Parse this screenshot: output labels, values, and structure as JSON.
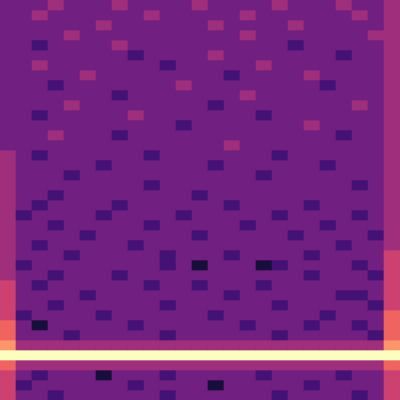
{
  "chart_data": {
    "type": "heatmap",
    "tick_labels": false,
    "grid": false,
    "zlim": [
      0,
      9
    ],
    "cells": [
      [
        3,
        3,
        3,
        4,
        3,
        3,
        3,
        4,
        3,
        3,
        3,
        3,
        4,
        3,
        3,
        3,
        3,
        4,
        3,
        3,
        3,
        4,
        3,
        3,
        4
      ],
      [
        3,
        3,
        4,
        3,
        3,
        3,
        3,
        3,
        3,
        4,
        3,
        3,
        3,
        3,
        3,
        4,
        3,
        3,
        3,
        3,
        3,
        3,
        4,
        3,
        4
      ],
      [
        3,
        3,
        3,
        3,
        3,
        3,
        4,
        3,
        3,
        3,
        3,
        3,
        3,
        4,
        3,
        3,
        3,
        3,
        4,
        3,
        3,
        3,
        3,
        3,
        4
      ],
      [
        3,
        3,
        3,
        3,
        4,
        3,
        3,
        3,
        3,
        3,
        3,
        3,
        3,
        3,
        3,
        4,
        3,
        3,
        3,
        3,
        3,
        3,
        3,
        4,
        4
      ],
      [
        3,
        3,
        2,
        3,
        3,
        3,
        3,
        4,
        3,
        3,
        3,
        3,
        3,
        3,
        3,
        3,
        3,
        3,
        2,
        3,
        3,
        3,
        3,
        3,
        4
      ],
      [
        3,
        3,
        3,
        3,
        3,
        3,
        3,
        3,
        2,
        3,
        3,
        3,
        3,
        4,
        3,
        3,
        3,
        3,
        3,
        3,
        3,
        2,
        3,
        3,
        4
      ],
      [
        3,
        3,
        4,
        3,
        3,
        3,
        3,
        3,
        3,
        3,
        2,
        3,
        3,
        3,
        3,
        3,
        4,
        3,
        3,
        3,
        3,
        3,
        3,
        3,
        4
      ],
      [
        3,
        3,
        3,
        3,
        3,
        4,
        3,
        3,
        3,
        3,
        3,
        3,
        3,
        3,
        2,
        3,
        3,
        3,
        3,
        4,
        3,
        3,
        3,
        3,
        4
      ],
      [
        3,
        3,
        3,
        2,
        3,
        3,
        3,
        3,
        3,
        3,
        3,
        4,
        3,
        3,
        3,
        3,
        3,
        3,
        3,
        3,
        2,
        3,
        3,
        3,
        4
      ],
      [
        3,
        3,
        3,
        3,
        3,
        3,
        3,
        2,
        3,
        3,
        3,
        3,
        3,
        3,
        3,
        4,
        3,
        3,
        3,
        3,
        3,
        3,
        3,
        3,
        4
      ],
      [
        3,
        3,
        3,
        3,
        4,
        3,
        3,
        3,
        3,
        3,
        3,
        3,
        3,
        2,
        3,
        3,
        3,
        3,
        3,
        3,
        3,
        3,
        4,
        3,
        4
      ],
      [
        3,
        3,
        2,
        3,
        3,
        3,
        3,
        3,
        4,
        3,
        3,
        3,
        3,
        3,
        3,
        3,
        2,
        3,
        3,
        3,
        3,
        3,
        3,
        3,
        4
      ],
      [
        3,
        3,
        3,
        3,
        3,
        3,
        3,
        3,
        3,
        3,
        3,
        2,
        3,
        3,
        3,
        3,
        3,
        3,
        3,
        4,
        3,
        3,
        3,
        3,
        4
      ],
      [
        3,
        3,
        3,
        4,
        3,
        3,
        3,
        2,
        3,
        3,
        3,
        3,
        3,
        3,
        3,
        3,
        3,
        3,
        3,
        3,
        3,
        2,
        3,
        3,
        4
      ],
      [
        3,
        3,
        3,
        3,
        3,
        3,
        3,
        3,
        3,
        3,
        3,
        3,
        3,
        3,
        4,
        3,
        3,
        3,
        3,
        3,
        3,
        3,
        3,
        3,
        4
      ],
      [
        4,
        3,
        2,
        3,
        3,
        3,
        3,
        3,
        3,
        2,
        3,
        3,
        3,
        3,
        3,
        3,
        3,
        2,
        3,
        3,
        3,
        3,
        3,
        3,
        4
      ],
      [
        4,
        3,
        3,
        3,
        3,
        3,
        2,
        3,
        3,
        3,
        3,
        3,
        3,
        2,
        3,
        3,
        3,
        3,
        3,
        3,
        2,
        3,
        3,
        3,
        4
      ],
      [
        4,
        3,
        3,
        3,
        2,
        3,
        3,
        3,
        3,
        3,
        3,
        3,
        3,
        3,
        3,
        3,
        2,
        3,
        3,
        3,
        3,
        3,
        3,
        3,
        4
      ],
      [
        4,
        3,
        3,
        3,
        3,
        3,
        3,
        3,
        3,
        2,
        3,
        3,
        3,
        3,
        3,
        3,
        3,
        3,
        3,
        3,
        3,
        3,
        2,
        3,
        4
      ],
      [
        4,
        3,
        3,
        2,
        3,
        3,
        3,
        3,
        3,
        3,
        3,
        3,
        2,
        3,
        3,
        3,
        3,
        3,
        3,
        3,
        3,
        3,
        3,
        3,
        4
      ],
      [
        4,
        3,
        2,
        3,
        3,
        3,
        3,
        2,
        3,
        3,
        3,
        3,
        3,
        3,
        2,
        3,
        3,
        3,
        3,
        2,
        3,
        3,
        3,
        3,
        4
      ],
      [
        4,
        2,
        3,
        3,
        3,
        3,
        2,
        3,
        3,
        3,
        3,
        2,
        3,
        3,
        3,
        3,
        3,
        2,
        3,
        3,
        3,
        3,
        2,
        3,
        4
      ],
      [
        4,
        3,
        3,
        2,
        3,
        3,
        3,
        3,
        3,
        2,
        3,
        3,
        3,
        3,
        3,
        2,
        3,
        3,
        3,
        3,
        2,
        3,
        3,
        3,
        4
      ],
      [
        4,
        3,
        3,
        3,
        3,
        2,
        3,
        3,
        3,
        3,
        3,
        3,
        2,
        3,
        3,
        3,
        3,
        3,
        2,
        3,
        3,
        3,
        3,
        2,
        4
      ],
      [
        4,
        3,
        2,
        3,
        3,
        3,
        3,
        3,
        2,
        3,
        3,
        3,
        3,
        3,
        3,
        3,
        3,
        3,
        3,
        3,
        3,
        2,
        3,
        3,
        4
      ],
      [
        4,
        3,
        3,
        3,
        2,
        3,
        3,
        3,
        3,
        3,
        2,
        3,
        3,
        3,
        2,
        3,
        3,
        3,
        3,
        2,
        3,
        3,
        3,
        3,
        5
      ],
      [
        4,
        2,
        3,
        3,
        3,
        3,
        3,
        3,
        3,
        3,
        2,
        3,
        1,
        3,
        3,
        3,
        1,
        2,
        3,
        3,
        3,
        3,
        2,
        3,
        5
      ],
      [
        4,
        3,
        3,
        2,
        3,
        3,
        3,
        2,
        3,
        3,
        3,
        3,
        3,
        3,
        3,
        3,
        3,
        3,
        3,
        2,
        3,
        3,
        3,
        2,
        5
      ],
      [
        5,
        3,
        2,
        3,
        3,
        3,
        3,
        3,
        3,
        2,
        3,
        3,
        2,
        3,
        3,
        3,
        2,
        3,
        3,
        3,
        3,
        3,
        3,
        3,
        5
      ],
      [
        5,
        3,
        3,
        3,
        3,
        2,
        3,
        3,
        3,
        3,
        3,
        3,
        3,
        3,
        2,
        3,
        3,
        3,
        3,
        3,
        3,
        2,
        2,
        3,
        5
      ],
      [
        5,
        3,
        3,
        2,
        3,
        3,
        3,
        3,
        3,
        3,
        2,
        3,
        3,
        3,
        3,
        3,
        3,
        2,
        3,
        3,
        3,
        3,
        3,
        2,
        5
      ],
      [
        5,
        2,
        3,
        3,
        3,
        3,
        2,
        3,
        3,
        3,
        3,
        3,
        3,
        2,
        3,
        3,
        3,
        3,
        3,
        3,
        2,
        3,
        3,
        3,
        6
      ],
      [
        6,
        3,
        1,
        3,
        3,
        3,
        3,
        3,
        2,
        3,
        3,
        3,
        3,
        3,
        3,
        2,
        3,
        3,
        3,
        2,
        3,
        3,
        2,
        3,
        6
      ],
      [
        6,
        3,
        3,
        3,
        2,
        3,
        3,
        3,
        3,
        3,
        2,
        3,
        3,
        3,
        3,
        3,
        3,
        2,
        3,
        3,
        3,
        3,
        3,
        2,
        6
      ],
      [
        7,
        4,
        4,
        4,
        4,
        4,
        4,
        4,
        4,
        4,
        4,
        4,
        4,
        4,
        4,
        4,
        4,
        4,
        4,
        4,
        4,
        4,
        4,
        4,
        7
      ],
      [
        9,
        9,
        9,
        9,
        9,
        9,
        9,
        9,
        9,
        9,
        9,
        9,
        9,
        9,
        9,
        9,
        9,
        9,
        9,
        9,
        9,
        9,
        9,
        9,
        9
      ],
      [
        6,
        4,
        4,
        4,
        4,
        4,
        4,
        4,
        4,
        4,
        4,
        4,
        4,
        4,
        4,
        4,
        4,
        4,
        4,
        4,
        4,
        4,
        4,
        4,
        6
      ],
      [
        5,
        3,
        2,
        3,
        3,
        3,
        1,
        3,
        3,
        3,
        2,
        3,
        3,
        3,
        3,
        3,
        2,
        3,
        3,
        3,
        3,
        2,
        3,
        3,
        5
      ],
      [
        5,
        2,
        3,
        3,
        3,
        3,
        3,
        3,
        2,
        3,
        3,
        3,
        3,
        1,
        3,
        3,
        3,
        3,
        3,
        2,
        3,
        3,
        3,
        3,
        5
      ],
      [
        5,
        3,
        3,
        2,
        3,
        3,
        3,
        3,
        3,
        3,
        2,
        3,
        3,
        3,
        3,
        3,
        3,
        2,
        3,
        3,
        3,
        3,
        2,
        3,
        5
      ]
    ]
  }
}
